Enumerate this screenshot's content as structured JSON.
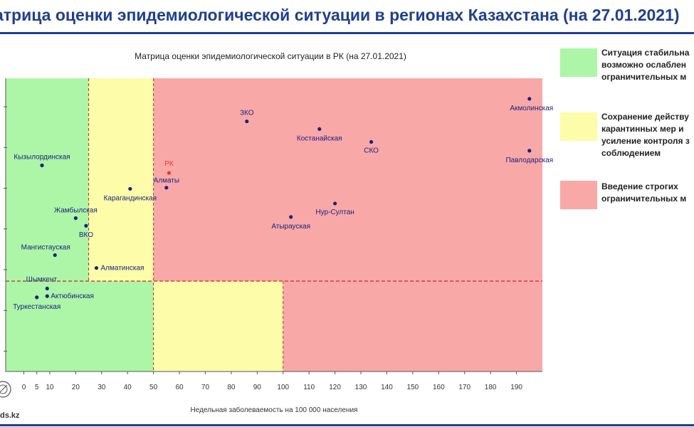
{
  "header": {
    "title": "атрица оценки эпидемиологической ситуации в регионах Казахстана (на 27.01.2021)"
  },
  "legend": {
    "items": [
      {
        "lines": [
          "Ситуация стабильна",
          "возможно ослаблен",
          "ограничительных м"
        ],
        "color": "#adf5a7"
      },
      {
        "lines": [
          "Сохранение действу",
          "карантинных мер и",
          "усиление контроля з",
          "соблюдением"
        ],
        "color": "#fdfca9"
      },
      {
        "lines": [
          "Введение строгих",
          "ограничительных м"
        ],
        "color": "#f9a8a8"
      }
    ]
  },
  "footer": {
    "site": "ds.kz"
  },
  "chart_data": {
    "type": "scatter",
    "title": "Матрица оценки эпидемиологической ситуации в РК (на 27.01.2021)",
    "xlabel": "Недельная заболеваемость на 100 000 населения",
    "xlim": [
      -7,
      200
    ],
    "xticks": [
      0,
      5,
      10,
      20,
      30,
      40,
      50,
      60,
      70,
      80,
      90,
      100,
      110,
      120,
      130,
      140,
      150,
      160,
      170,
      180,
      190
    ],
    "y_gridlines": 7,
    "zones": [
      {
        "color": "#adf5a7",
        "x": [
          -7,
          25
        ],
        "y": "upper"
      },
      {
        "color": "#fdfca9",
        "x": [
          25,
          50
        ],
        "y": "upper"
      },
      {
        "color": "#f9a8a8",
        "x": [
          50,
          200
        ],
        "y": "upper"
      },
      {
        "color": "#adf5a7",
        "x": [
          -7,
          50
        ],
        "y": "lower"
      },
      {
        "color": "#fdfca9",
        "x": [
          50,
          100
        ],
        "y": "lower"
      },
      {
        "color": "#f9a8a8",
        "x": [
          100,
          200
        ],
        "y": "lower"
      }
    ],
    "colors": {
      "point": "#1a237e",
      "highlight": "#e53935",
      "divider": "#c62828"
    },
    "points": [
      {
        "label": "Акмолинская",
        "x": 195,
        "y": 0.93
      },
      {
        "label": "ЗКО",
        "x": 86,
        "y": 0.853
      },
      {
        "label": "Костанайская",
        "x": 114,
        "y": 0.827
      },
      {
        "label": "СКО",
        "x": 134,
        "y": 0.783
      },
      {
        "label": "Павлодарская",
        "x": 195,
        "y": 0.753
      },
      {
        "label": "РК",
        "x": 56,
        "y": 0.677,
        "highlight": true
      },
      {
        "label": "Алматы",
        "x": 55,
        "y": 0.627
      },
      {
        "label": "Кызылординская",
        "x": 7,
        "y": 0.703
      },
      {
        "label": "Карагандинская",
        "x": 41,
        "y": 0.623
      },
      {
        "label": "Жамбылская",
        "x": 20,
        "y": 0.523
      },
      {
        "label": "Нур-Султан",
        "x": 120,
        "y": 0.573
      },
      {
        "label": "Атырауская",
        "x": 103,
        "y": 0.527
      },
      {
        "label": "ВКО",
        "x": 24,
        "y": 0.497
      },
      {
        "label": "Мангистауская",
        "x": 12,
        "y": 0.397
      },
      {
        "label": "Алматинская",
        "x": 28,
        "y": 0.353
      },
      {
        "label": "Шымкент",
        "x": 9,
        "y": 0.283
      },
      {
        "label": "Актюбинская",
        "x": 9,
        "y": 0.257
      },
      {
        "label": "Туркестанская",
        "x": 5,
        "y": 0.253
      }
    ]
  }
}
